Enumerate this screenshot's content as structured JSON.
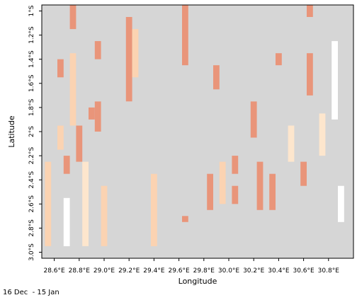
{
  "chart_data": {
    "type": "heatmap",
    "xlabel": "Longitude",
    "ylabel": "Latitude",
    "x_ticks": [
      "28.6°E",
      "28.8°E",
      "29.0°E",
      "29.2°E",
      "29.4°E",
      "29.6°E",
      "29.8°E",
      "30.0°E",
      "30.2°E",
      "30.4°E",
      "30.6°E",
      "30.8°E"
    ],
    "y_ticks": [
      "1°S",
      "1.2°S",
      "1.4°S",
      "1.6°S",
      "1.8°S",
      "2°S",
      "2.2°S",
      "2.4°S",
      "2.6°S",
      "2.8°S",
      "3.0°S"
    ],
    "x_range": [
      28.5,
      31.0
    ],
    "y_range": [
      -3.05,
      -0.95
    ],
    "cell_size_deg": 0.05,
    "colors": {
      "gray": "#d6d6d6",
      "white": "#ffffff",
      "light": "#fde6cd",
      "mid": "#fbd3b2",
      "dark": "#e9957a"
    },
    "columns": [
      {
        "lon": 28.55,
        "lat_from": -0.95,
        "lat_to": -2.25,
        "code": "g"
      },
      {
        "lon": 28.55,
        "lat_from": -2.25,
        "lat_to": -2.95,
        "code": "m"
      },
      {
        "lon": 28.65,
        "lat_from": -0.95,
        "lat_to": -3.05,
        "code": "g"
      },
      {
        "lon": 28.65,
        "lat_from": -1.4,
        "lat_to": -1.55,
        "code": "d"
      },
      {
        "lon": 28.65,
        "lat_from": -1.95,
        "lat_to": -2.15,
        "code": "m"
      },
      {
        "lon": 28.7,
        "lat_from": -2.2,
        "lat_to": -2.35,
        "code": "d"
      },
      {
        "lon": 28.7,
        "lat_from": -2.55,
        "lat_to": -2.95,
        "code": "w"
      },
      {
        "lon": 28.75,
        "lat_from": -0.95,
        "lat_to": -1.15,
        "code": "d"
      },
      {
        "lon": 28.75,
        "lat_from": -1.35,
        "lat_to": -1.95,
        "code": "m"
      },
      {
        "lon": 28.8,
        "lat_from": -1.95,
        "lat_to": -2.25,
        "code": "d"
      },
      {
        "lon": 28.85,
        "lat_from": -2.25,
        "lat_to": -2.95,
        "code": "l"
      },
      {
        "lon": 28.9,
        "lat_from": -1.8,
        "lat_to": -1.9,
        "code": "d"
      },
      {
        "lon": 28.95,
        "lat_from": -1.25,
        "lat_to": -1.4,
        "code": "d"
      },
      {
        "lon": 28.95,
        "lat_from": -1.75,
        "lat_to": -2.0,
        "code": "d"
      },
      {
        "lon": 29.0,
        "lat_from": -2.45,
        "lat_to": -2.95,
        "code": "m"
      },
      {
        "lon": 29.2,
        "lat_from": -1.05,
        "lat_to": -1.75,
        "code": "d"
      },
      {
        "lon": 29.25,
        "lat_from": -1.15,
        "lat_to": -1.55,
        "code": "m"
      },
      {
        "lon": 29.4,
        "lat_from": -2.35,
        "lat_to": -2.95,
        "code": "m"
      },
      {
        "lon": 29.65,
        "lat_from": -0.95,
        "lat_to": -1.45,
        "code": "d"
      },
      {
        "lon": 29.65,
        "lat_from": -2.7,
        "lat_to": -2.75,
        "code": "d"
      },
      {
        "lon": 29.85,
        "lat_from": -2.35,
        "lat_to": -2.65,
        "code": "d"
      },
      {
        "lon": 29.9,
        "lat_from": -1.45,
        "lat_to": -1.65,
        "code": "d"
      },
      {
        "lon": 29.95,
        "lat_from": -2.25,
        "lat_to": -2.6,
        "code": "m"
      },
      {
        "lon": 30.05,
        "lat_from": -2.2,
        "lat_to": -2.35,
        "code": "d"
      },
      {
        "lon": 30.05,
        "lat_from": -2.45,
        "lat_to": -2.6,
        "code": "d"
      },
      {
        "lon": 30.2,
        "lat_from": -1.75,
        "lat_to": -2.05,
        "code": "d"
      },
      {
        "lon": 30.25,
        "lat_from": -2.25,
        "lat_to": -2.65,
        "code": "d"
      },
      {
        "lon": 30.35,
        "lat_from": -2.35,
        "lat_to": -2.65,
        "code": "d"
      },
      {
        "lon": 30.4,
        "lat_from": -1.35,
        "lat_to": -1.45,
        "code": "d"
      },
      {
        "lon": 30.5,
        "lat_from": -1.95,
        "lat_to": -2.25,
        "code": "l"
      },
      {
        "lon": 30.6,
        "lat_from": -2.25,
        "lat_to": -2.45,
        "code": "d"
      },
      {
        "lon": 30.65,
        "lat_from": -1.35,
        "lat_to": -1.7,
        "code": "d"
      },
      {
        "lon": 30.65,
        "lat_from": -0.95,
        "lat_to": -1.05,
        "code": "d"
      },
      {
        "lon": 30.75,
        "lat_from": -1.85,
        "lat_to": -2.2,
        "code": "l"
      },
      {
        "lon": 30.85,
        "lat_from": -1.25,
        "lat_to": -1.9,
        "code": "w"
      },
      {
        "lon": 30.9,
        "lat_from": -2.45,
        "lat_to": -2.75,
        "code": "w"
      }
    ]
  },
  "caption": {
    "period": "16 Dec  - 15 Jan"
  }
}
